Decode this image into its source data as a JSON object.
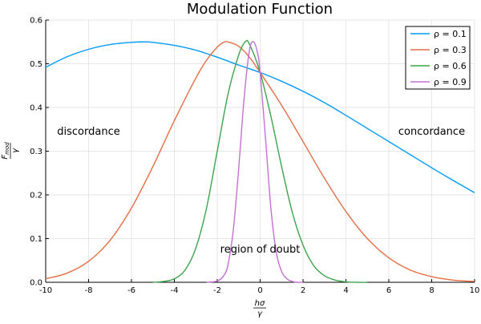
{
  "chart_data": {
    "type": "line",
    "title": "Modulation Function",
    "xlabel": {
      "num": "hσ",
      "den": "γ"
    },
    "ylabel": {
      "num": "F",
      "num_sub": "mod",
      "den": "γ"
    },
    "xlim": [
      -10,
      10
    ],
    "ylim": [
      0,
      0.6
    ],
    "xticks": [
      -10,
      -8,
      -6,
      -4,
      -2,
      0,
      2,
      4,
      6,
      8,
      10
    ],
    "xtick_labels": [
      "-10",
      "-8",
      "-6",
      "-4",
      "-2",
      "0",
      "2",
      "4",
      "6",
      "8",
      "10"
    ],
    "yticks": [
      0,
      0.1,
      0.2,
      0.3,
      0.4,
      0.5,
      0.6
    ],
    "ytick_labels": [
      "0.0",
      "0.1",
      "0.2",
      "0.3",
      "0.4",
      "0.5",
      "0.6"
    ],
    "grid": true,
    "legend_position": "top-right",
    "series": [
      {
        "name": "ρ = 0.1",
        "color": "#009af9",
        "x": [
          -10,
          -9,
          -8,
          -7,
          -6,
          -5.5,
          -5,
          -4,
          -3,
          -2,
          -1,
          0,
          1,
          2,
          3,
          4,
          5,
          6,
          7,
          8,
          9,
          10
        ],
        "y": [
          0.492,
          0.516,
          0.533,
          0.544,
          0.549,
          0.55,
          0.549,
          0.542,
          0.531,
          0.515,
          0.497,
          0.48,
          0.46,
          0.437,
          0.411,
          0.382,
          0.352,
          0.322,
          0.292,
          0.262,
          0.233,
          0.205
        ]
      },
      {
        "name": "ρ = 0.3",
        "color": "#e26f46",
        "x": [
          -10,
          -9,
          -8,
          -7,
          -6,
          -5,
          -4,
          -3,
          -2.5,
          -2,
          -1.7,
          -1.5,
          -1,
          -0.5,
          0,
          1,
          2,
          3,
          4,
          5,
          6,
          7,
          8,
          9,
          10
        ],
        "y": [
          0.008,
          0.021,
          0.048,
          0.096,
          0.17,
          0.265,
          0.37,
          0.467,
          0.508,
          0.538,
          0.549,
          0.55,
          0.54,
          0.515,
          0.48,
          0.405,
          0.322,
          0.238,
          0.162,
          0.1,
          0.056,
          0.028,
          0.013,
          0.005,
          0.002
        ]
      },
      {
        "name": "ρ = 0.6",
        "color": "#3da44d",
        "x": [
          -5,
          -4.5,
          -4,
          -3.5,
          -3,
          -2.5,
          -2,
          -1.5,
          -1,
          -0.7,
          -0.5,
          0,
          0.5,
          1,
          1.5,
          2,
          2.5,
          3,
          3.5,
          4,
          4.5,
          5
        ],
        "y": [
          0.0,
          0.002,
          0.008,
          0.028,
          0.078,
          0.17,
          0.3,
          0.43,
          0.52,
          0.55,
          0.545,
          0.48,
          0.38,
          0.265,
          0.16,
          0.085,
          0.038,
          0.015,
          0.005,
          0.001,
          0.0,
          0.0
        ]
      },
      {
        "name": "ρ = 0.9",
        "color": "#c271d2",
        "x": [
          -2.5,
          -2,
          -1.7,
          -1.5,
          -1.25,
          -1,
          -0.75,
          -0.5,
          -0.3,
          -0.1,
          0,
          0.25,
          0.5,
          0.75,
          1,
          1.25,
          1.5,
          1.75,
          2
        ],
        "y": [
          0.0,
          0.003,
          0.015,
          0.04,
          0.12,
          0.26,
          0.42,
          0.53,
          0.55,
          0.52,
          0.48,
          0.33,
          0.17,
          0.07,
          0.025,
          0.008,
          0.002,
          0.0,
          0.0
        ]
      }
    ],
    "annotations": [
      {
        "text": "discordance",
        "x": -8,
        "y": 0.345
      },
      {
        "text": "concordance",
        "x": 8,
        "y": 0.345
      },
      {
        "text": "region of doubt",
        "x": 0,
        "y": 0.075
      }
    ]
  }
}
